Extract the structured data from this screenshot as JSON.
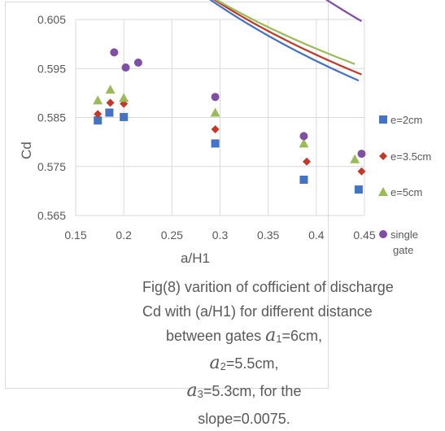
{
  "chart_data": {
    "type": "scatter",
    "title": "",
    "xlabel": "a/H1",
    "ylabel": "Cd",
    "xlim": [
      0.15,
      0.45
    ],
    "ylim": [
      0.565,
      0.605
    ],
    "xticks": [
      "0.15",
      "0.2",
      "0.25",
      "0.3",
      "0.35",
      "0.4",
      "0.45"
    ],
    "yticks": [
      "0.565",
      "0.575",
      "0.585",
      "0.595",
      "0.605"
    ],
    "grid": true,
    "legend_position": "right",
    "trendline": "power",
    "series": [
      {
        "name": "e=2cm",
        "marker": "square",
        "color": "#4472c4",
        "points": [
          [
            0.173,
            0.5844
          ],
          [
            0.185,
            0.586
          ],
          [
            0.2,
            0.5851
          ],
          [
            0.295,
            0.5797
          ],
          [
            0.387,
            0.5723
          ],
          [
            0.444,
            0.5703
          ]
        ],
        "trend": {
          "a": 0.5623,
          "b": -0.0645
        }
      },
      {
        "name": "e=3.5cm",
        "marker": "diamond",
        "color": "#c0392b",
        "points": [
          [
            0.173,
            0.5857
          ],
          [
            0.186,
            0.588
          ],
          [
            0.2,
            0.5878
          ],
          [
            0.295,
            0.5826
          ],
          [
            0.39,
            0.576
          ],
          [
            0.447,
            0.574
          ]
        ],
        "trend": {
          "a": 0.5655,
          "b": -0.0606
        }
      },
      {
        "name": "e=5cm",
        "marker": "triangle",
        "color": "#9bbb59",
        "points": [
          [
            0.173,
            0.5885
          ],
          [
            0.186,
            0.5907
          ],
          [
            0.2,
            0.589
          ],
          [
            0.295,
            0.586
          ],
          [
            0.387,
            0.5797
          ],
          [
            0.44,
            0.5765
          ]
        ],
        "trend": {
          "a": 0.5696,
          "b": -0.055
        }
      },
      {
        "name": "single gate",
        "marker": "circle",
        "color": "#7f4fa3",
        "points": [
          [
            0.19,
            0.5983
          ],
          [
            0.202,
            0.5952
          ],
          [
            0.215,
            0.5962
          ],
          [
            0.295,
            0.5892
          ],
          [
            0.387,
            0.5812
          ],
          [
            0.447,
            0.5776
          ]
        ],
        "trend": {
          "a": 0.5647,
          "b": -0.0849
        }
      }
    ]
  },
  "caption": {
    "line1": "Fig(8) varition of cofficient of discharge",
    "line2": "Cd with (a/H1) for different distance",
    "line3_pre": "between gates ",
    "line3_a1": "a",
    "line3_sub1": "1",
    "line3_val1": "=6cm, ",
    "line3_a2": "a",
    "line3_sub2": "2",
    "line3_val2": "=5.5cm,",
    "line4_a3": "a",
    "line4_sub3": "3",
    "line4_rest": "=5.3cm, for the slope=0.0075."
  }
}
